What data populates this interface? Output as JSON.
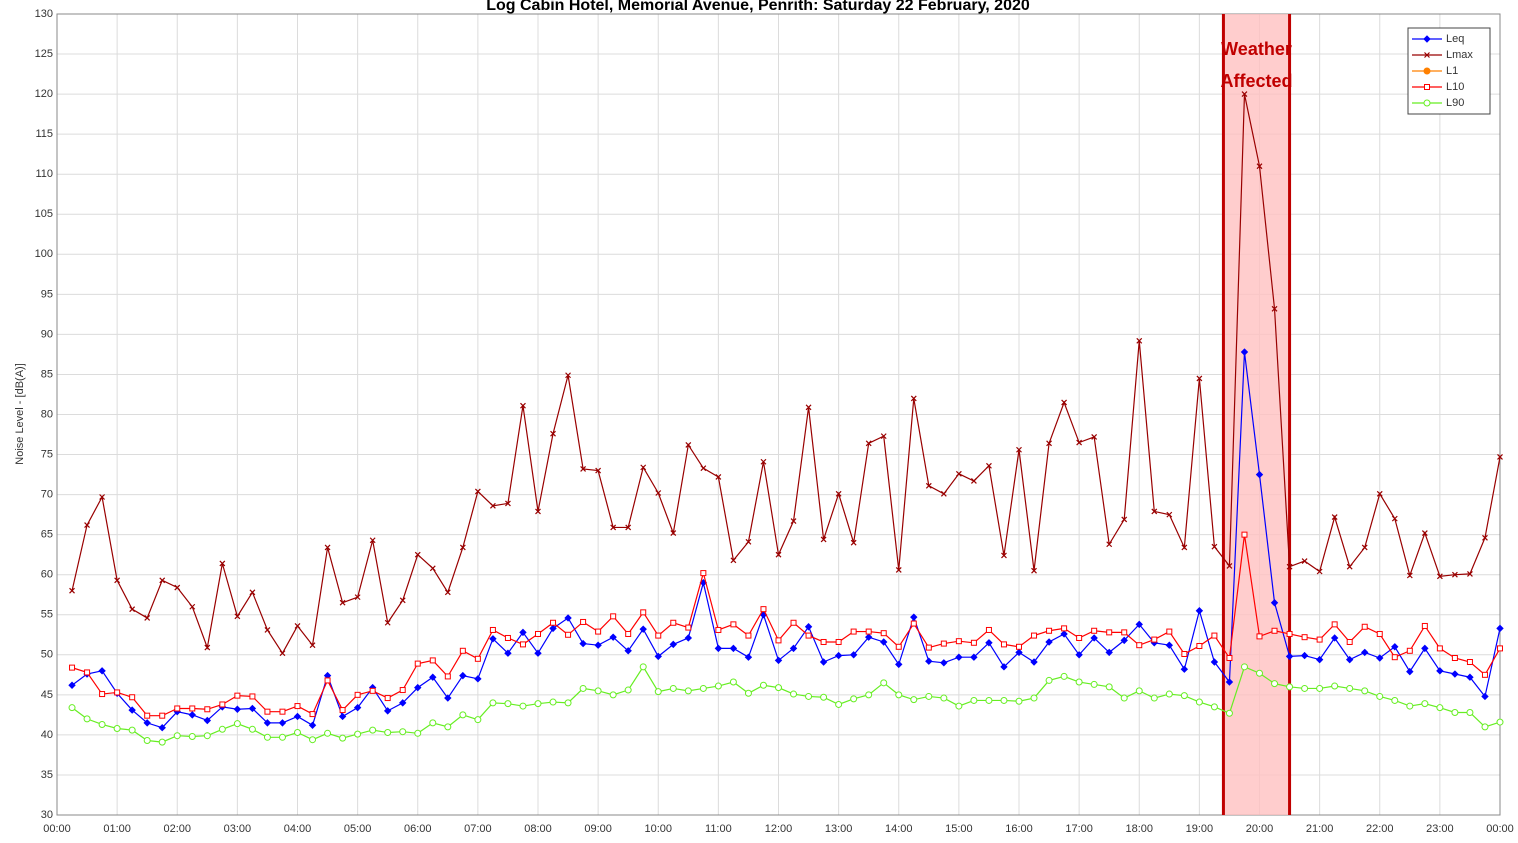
{
  "chart_data": {
    "type": "line",
    "title": "Log Cabin Hotel, Memorial Avenue, Penrith: Saturday 22 February, 2020",
    "y_label": "Noise Level - [dB(A)]",
    "x": [
      0.25,
      0.5,
      0.75,
      1,
      1.25,
      1.5,
      1.75,
      2,
      2.25,
      2.5,
      2.75,
      3,
      3.25,
      3.5,
      3.75,
      4,
      4.25,
      4.5,
      4.75,
      5,
      5.25,
      5.5,
      5.75,
      6,
      6.25,
      6.5,
      6.75,
      7,
      7.25,
      7.5,
      7.75,
      8,
      8.25,
      8.5,
      8.75,
      9,
      9.25,
      9.5,
      9.75,
      10,
      10.25,
      10.5,
      10.75,
      11,
      11.25,
      11.5,
      11.75,
      12,
      12.25,
      12.5,
      12.75,
      13,
      13.25,
      13.5,
      13.75,
      14,
      14.25,
      14.5,
      14.75,
      15,
      15.25,
      15.5,
      15.75,
      16,
      16.25,
      16.5,
      16.75,
      17,
      17.25,
      17.5,
      17.75,
      18,
      18.25,
      18.5,
      18.75,
      19,
      19.25,
      19.5,
      19.75,
      20,
      20.25,
      20.5,
      20.75,
      21,
      21.25,
      21.5,
      21.75,
      22,
      22.25,
      22.5,
      22.75,
      23,
      23.25,
      23.5,
      23.75,
      24
    ],
    "xlim": [
      0,
      24
    ],
    "xticks": [
      {
        "value": 0,
        "label": "00:00"
      },
      {
        "value": 1,
        "label": "01:00"
      },
      {
        "value": 2,
        "label": "02:00"
      },
      {
        "value": 3,
        "label": "03:00"
      },
      {
        "value": 4,
        "label": "04:00"
      },
      {
        "value": 5,
        "label": "05:00"
      },
      {
        "value": 6,
        "label": "06:00"
      },
      {
        "value": 7,
        "label": "07:00"
      },
      {
        "value": 8,
        "label": "08:00"
      },
      {
        "value": 9,
        "label": "09:00"
      },
      {
        "value": 10,
        "label": "10:00"
      },
      {
        "value": 11,
        "label": "11:00"
      },
      {
        "value": 12,
        "label": "12:00"
      },
      {
        "value": 13,
        "label": "13:00"
      },
      {
        "value": 14,
        "label": "14:00"
      },
      {
        "value": 15,
        "label": "15:00"
      },
      {
        "value": 16,
        "label": "16:00"
      },
      {
        "value": 17,
        "label": "17:00"
      },
      {
        "value": 18,
        "label": "18:00"
      },
      {
        "value": 19,
        "label": "19:00"
      },
      {
        "value": 20,
        "label": "20:00"
      },
      {
        "value": 21,
        "label": "21:00"
      },
      {
        "value": 22,
        "label": "22:00"
      },
      {
        "value": 23,
        "label": "23:00"
      },
      {
        "value": 24,
        "label": "00:00"
      }
    ],
    "ylim": [
      30,
      130
    ],
    "yticks": [
      30,
      35,
      40,
      45,
      50,
      55,
      60,
      65,
      70,
      75,
      80,
      85,
      90,
      95,
      100,
      105,
      110,
      115,
      120,
      125,
      130
    ],
    "grid": true,
    "legend": "top-right",
    "series": [
      {
        "name": "Leq",
        "color": "#0000ff",
        "marker": "diamond",
        "values": [
          46.2,
          47.6,
          48.0,
          45.2,
          43.1,
          41.5,
          40.9,
          42.9,
          42.5,
          41.8,
          43.5,
          43.2,
          43.3,
          41.5,
          41.5,
          42.3,
          41.2,
          47.4,
          42.3,
          43.4,
          45.9,
          43.0,
          44.0,
          45.9,
          47.2,
          44.6,
          47.4,
          47.0,
          52.0,
          50.2,
          52.8,
          50.2,
          53.3,
          54.6,
          51.4,
          51.2,
          52.2,
          50.5,
          53.2,
          49.8,
          51.3,
          52.1,
          59.0,
          50.8,
          50.8,
          49.7,
          55.0,
          49.3,
          50.8,
          53.5,
          49.1,
          49.9,
          50.0,
          52.2,
          51.6,
          48.8,
          54.7,
          49.2,
          49.0,
          49.7,
          49.7,
          51.5,
          48.5,
          50.3,
          49.1,
          51.6,
          52.6,
          50.0,
          52.1,
          50.3,
          51.8,
          53.8,
          51.5,
          51.2,
          48.2,
          55.5,
          49.1,
          46.6,
          87.8,
          72.5,
          56.5,
          49.8,
          49.9,
          49.4,
          52.1,
          49.4,
          50.3,
          49.6,
          51.0,
          47.9,
          50.8,
          48.0,
          47.6,
          47.2,
          44.8,
          53.3
        ]
      },
      {
        "name": "Lmax",
        "color": "#990000",
        "marker": "x",
        "values": [
          58.0,
          66.2,
          69.7,
          59.3,
          55.7,
          54.6,
          59.3,
          58.4,
          56.0,
          50.9,
          61.4,
          54.8,
          57.8,
          53.1,
          50.2,
          53.6,
          51.2,
          63.4,
          56.5,
          57.2,
          64.3,
          54.0,
          56.8,
          62.5,
          60.8,
          57.8,
          63.4,
          70.4,
          68.6,
          68.9,
          81.1,
          67.9,
          77.6,
          84.9,
          73.2,
          73.0,
          65.9,
          65.9,
          73.4,
          70.2,
          65.2,
          76.2,
          73.3,
          72.2,
          61.8,
          64.1,
          74.1,
          62.5,
          66.7,
          80.9,
          64.4,
          70.1,
          64.0,
          76.4,
          77.3,
          60.6,
          82.0,
          71.1,
          70.1,
          72.6,
          71.7,
          73.6,
          62.4,
          75.6,
          60.5,
          76.4,
          81.5,
          76.5,
          77.2,
          63.8,
          66.9,
          89.2,
          67.9,
          67.5,
          63.4,
          84.5,
          63.5,
          61.1,
          120.0,
          111.0,
          93.2,
          61.0,
          61.7,
          60.4,
          67.2,
          61.0,
          63.4,
          70.1,
          67.0,
          59.9,
          65.2,
          59.8,
          60.0,
          60.1,
          64.6,
          74.7
        ]
      },
      {
        "name": "L1",
        "color": "#ff8000",
        "marker": "dot",
        "values": [
          null,
          null,
          null,
          null,
          null,
          null,
          null,
          null,
          null,
          null,
          null,
          null,
          null,
          null,
          null,
          null,
          null,
          null,
          null,
          null,
          null,
          null,
          null,
          null,
          null,
          null,
          null,
          null,
          null,
          null,
          null,
          null,
          null,
          null,
          null,
          null,
          null,
          null,
          null,
          null,
          null,
          null,
          null,
          null,
          null,
          null,
          null,
          null,
          null,
          null,
          null,
          null,
          null,
          null,
          null,
          null,
          null,
          null,
          null,
          null,
          null,
          null,
          null,
          null,
          null,
          null,
          null,
          null,
          null,
          null,
          null,
          null,
          null,
          null,
          null,
          null,
          null,
          null,
          null,
          null,
          null,
          null,
          null,
          null,
          null,
          null,
          null,
          null,
          null,
          null,
          null,
          null,
          null,
          null,
          null,
          null
        ]
      },
      {
        "name": "L10",
        "color": "#ff0000",
        "marker": "square",
        "values": [
          48.4,
          47.8,
          45.1,
          45.3,
          44.7,
          42.4,
          42.4,
          43.3,
          43.3,
          43.2,
          43.8,
          44.9,
          44.8,
          42.9,
          42.9,
          43.6,
          42.6,
          46.8,
          43.1,
          45.0,
          45.5,
          44.6,
          45.6,
          48.9,
          49.3,
          47.3,
          50.5,
          49.5,
          53.1,
          52.1,
          51.3,
          52.6,
          54.0,
          52.5,
          54.1,
          52.9,
          54.8,
          52.6,
          55.3,
          52.4,
          54.0,
          53.4,
          60.2,
          53.1,
          53.8,
          52.4,
          55.7,
          51.8,
          54.0,
          52.4,
          51.6,
          51.6,
          52.9,
          52.9,
          52.7,
          51.0,
          53.9,
          50.9,
          51.4,
          51.7,
          51.5,
          53.1,
          51.3,
          51.0,
          52.4,
          53.0,
          53.3,
          52.1,
          53.0,
          52.8,
          52.8,
          51.2,
          51.9,
          52.9,
          50.1,
          51.1,
          52.4,
          49.6,
          65.0,
          52.3,
          53.0,
          52.6,
          52.2,
          51.9,
          53.8,
          51.6,
          53.5,
          52.6,
          49.7,
          50.5,
          53.6,
          50.8,
          49.6,
          49.1,
          47.5,
          50.8
        ]
      },
      {
        "name": "L90",
        "color": "#66ee22",
        "marker": "circle",
        "values": [
          43.4,
          42.0,
          41.3,
          40.8,
          40.6,
          39.3,
          39.1,
          39.9,
          39.8,
          39.9,
          40.7,
          41.4,
          40.7,
          39.7,
          39.7,
          40.3,
          39.4,
          40.2,
          39.6,
          40.1,
          40.6,
          40.3,
          40.4,
          40.2,
          41.5,
          41.0,
          42.5,
          41.9,
          44.0,
          43.9,
          43.6,
          43.9,
          44.1,
          44.0,
          45.8,
          45.5,
          45.0,
          45.6,
          48.5,
          45.4,
          45.8,
          45.5,
          45.8,
          46.1,
          46.6,
          45.2,
          46.2,
          45.9,
          45.1,
          44.8,
          44.7,
          43.8,
          44.5,
          45.0,
          46.5,
          45.0,
          44.4,
          44.8,
          44.6,
          43.6,
          44.3,
          44.3,
          44.3,
          44.2,
          44.6,
          46.8,
          47.3,
          46.6,
          46.3,
          46.0,
          44.6,
          45.5,
          44.6,
          45.1,
          44.9,
          44.1,
          43.5,
          42.7,
          48.5,
          47.7,
          46.4,
          46.0,
          45.8,
          45.8,
          46.1,
          45.8,
          45.5,
          44.8,
          44.3,
          43.6,
          43.9,
          43.4,
          42.8,
          42.8,
          41.0,
          41.6
        ]
      }
    ],
    "annotations": [
      {
        "lines": [
          "Weather",
          "Affected"
        ],
        "xrange": [
          19.4,
          20.5
        ],
        "color": "#c00000",
        "fill": "#ffc0c0"
      }
    ]
  }
}
